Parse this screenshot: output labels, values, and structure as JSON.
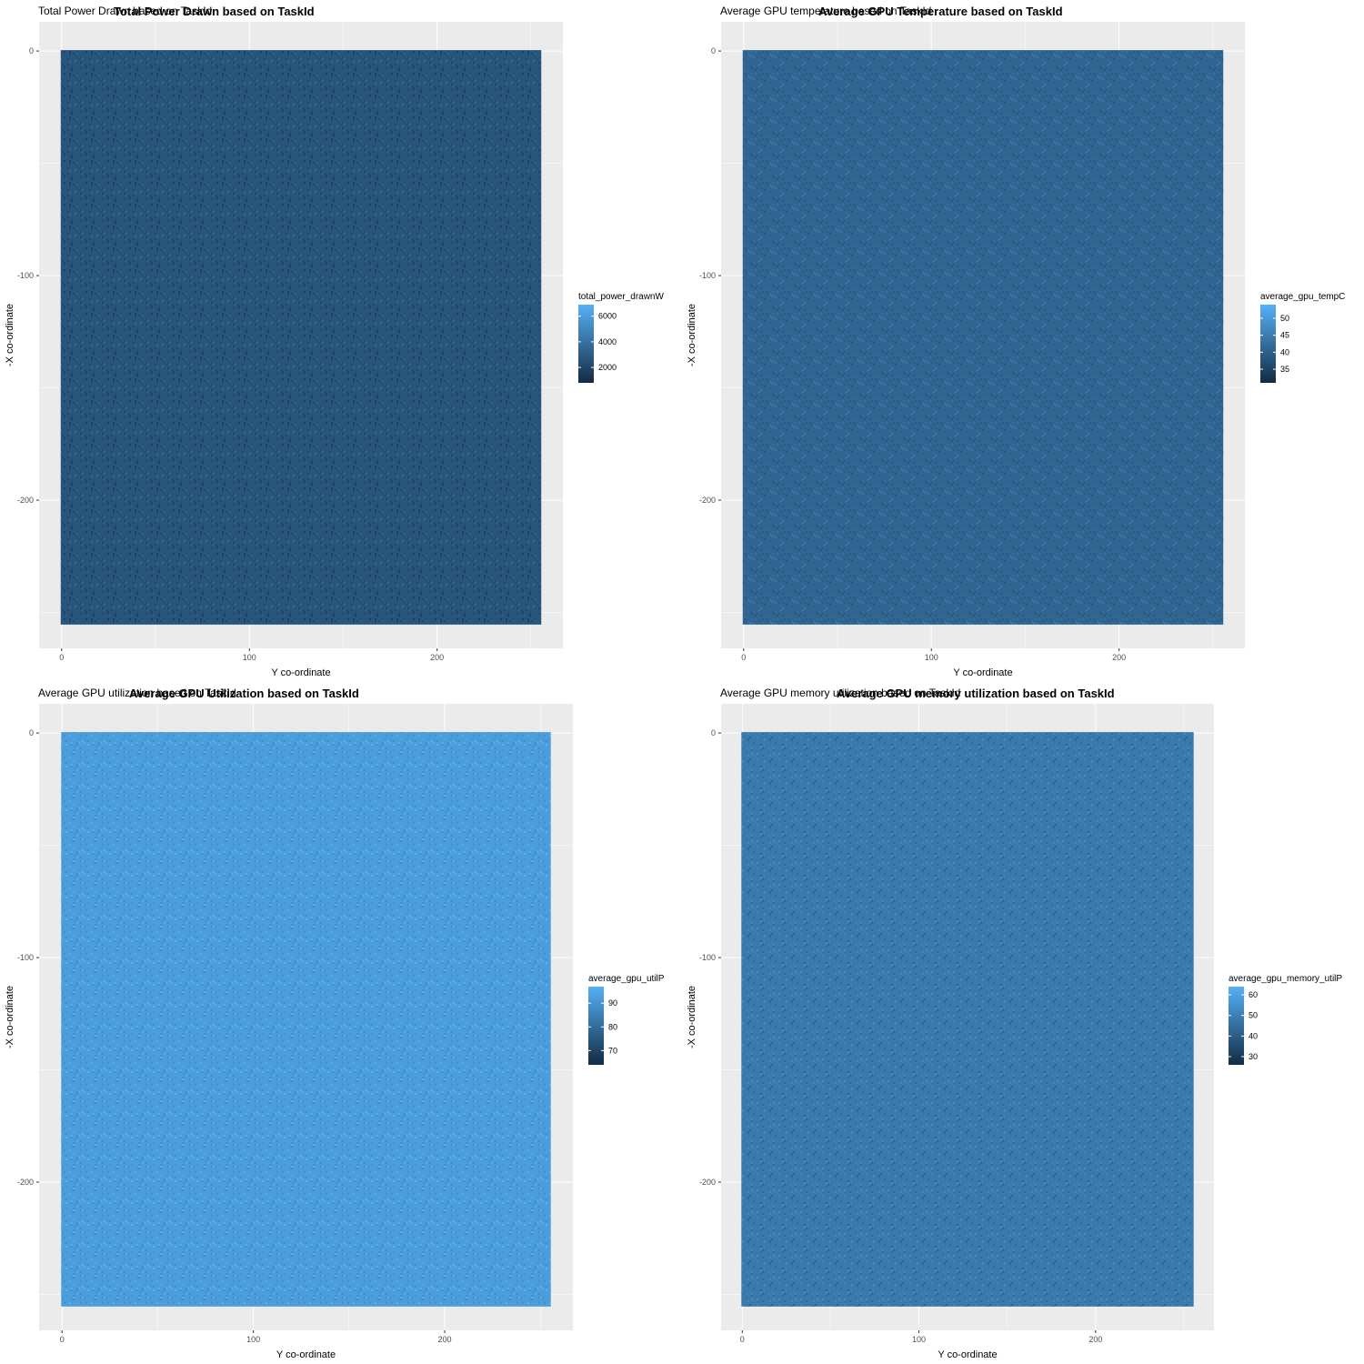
{
  "chart_data": [
    {
      "type": "heatmap",
      "title": "Total Power Drawn based on TaskId",
      "subtitle": "Total Power Drawn based on TaskId",
      "xlabel": "Y co-ordinate",
      "ylabel": "-X co-ordinate",
      "xlim": [
        -12,
        267
      ],
      "ylim": [
        -266,
        13
      ],
      "x_range": [
        0,
        255
      ],
      "y_range": [
        -255,
        0
      ],
      "x_ticks": [
        0,
        100,
        200
      ],
      "y_ticks": [
        0,
        -100,
        -200
      ],
      "legend": {
        "title": "total_power_drawnW",
        "ticks": [
          2000,
          4000,
          6000
        ],
        "range": [
          800,
          6900
        ],
        "position": "right"
      },
      "base_value": 2700,
      "color_low": "#132B43",
      "color_high": "#56B1F7",
      "grid": true
    },
    {
      "type": "heatmap",
      "title": "Average GPU Temperature based on TaskId",
      "subtitle": "Average GPU temperature based on TaskId",
      "xlabel": "Y co-ordinate",
      "ylabel": "-X co-ordinate",
      "xlim": [
        -12,
        267
      ],
      "ylim": [
        -266,
        13
      ],
      "x_range": [
        0,
        255
      ],
      "y_range": [
        -255,
        0
      ],
      "x_ticks": [
        0,
        100,
        200
      ],
      "y_ticks": [
        0,
        -100,
        -200
      ],
      "legend": {
        "title": "average_gpu_tempC",
        "ticks": [
          35,
          40,
          45,
          50
        ],
        "range": [
          31,
          54
        ],
        "position": "right"
      },
      "base_value": 41,
      "color_low": "#132B43",
      "color_high": "#56B1F7",
      "grid": true
    },
    {
      "type": "heatmap",
      "title": "Average GPU Utilization based on TaskId",
      "subtitle": "Average GPU utilization based on TaskId",
      "xlabel": "Y co-ordinate",
      "ylabel": "-X co-ordinate",
      "xlim": [
        -12,
        267
      ],
      "ylim": [
        -266,
        13
      ],
      "x_range": [
        0,
        255
      ],
      "y_range": [
        -255,
        0
      ],
      "x_ticks": [
        0,
        100,
        200
      ],
      "y_ticks": [
        0,
        -100,
        -200
      ],
      "legend": {
        "title": "average_gpu_utilP",
        "ticks": [
          70,
          80,
          90
        ],
        "range": [
          64,
          97
        ],
        "position": "right"
      },
      "base_value": 92,
      "color_low": "#132B43",
      "color_high": "#56B1F7",
      "grid": true
    },
    {
      "type": "heatmap",
      "title": "Average GPU memory utilization based on TaskId",
      "subtitle": "Average GPU memory utilization based on TaskId",
      "xlabel": "Y co-ordinate",
      "ylabel": "-X co-ordinate",
      "xlim": [
        -12,
        267
      ],
      "ylim": [
        -266,
        13
      ],
      "x_range": [
        0,
        255
      ],
      "y_range": [
        -255,
        0
      ],
      "x_ticks": [
        0,
        100,
        200
      ],
      "y_ticks": [
        0,
        -100,
        -200
      ],
      "legend": {
        "title": "average_gpu_memory_utilP",
        "ticks": [
          30,
          40,
          50,
          60
        ],
        "range": [
          26,
          64
        ],
        "position": "right"
      },
      "base_value": 48,
      "color_low": "#132B43",
      "color_high": "#56B1F7",
      "grid": true
    }
  ]
}
